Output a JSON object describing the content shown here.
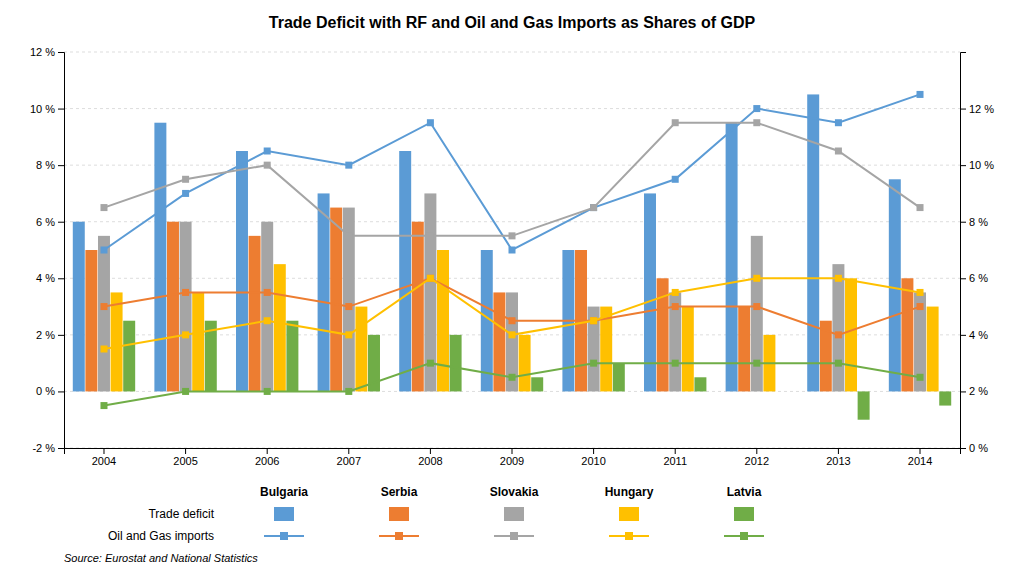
{
  "chart_data": {
    "type": "bar",
    "title": "Trade Deficit with RF and Oil and Gas Imports as Shares of GDP",
    "source": "Source: Eurostat and National Statistics",
    "annotations": [
      "Trade deficit",
      "Oil and Gas imports"
    ],
    "categories": [
      "2004",
      "2005",
      "2006",
      "2007",
      "2008",
      "2009",
      "2010",
      "2011",
      "2012",
      "2013",
      "2014"
    ],
    "series": [
      {
        "name": "Bulgaria",
        "color": "#5B9BD5",
        "values": [
          6.0,
          9.5,
          8.5,
          7.0,
          8.5,
          5.0,
          5.0,
          7.0,
          9.5,
          10.5,
          7.5
        ]
      },
      {
        "name": "Serbia",
        "color": "#ED7D31",
        "values": [
          5.0,
          6.0,
          5.5,
          6.5,
          6.0,
          3.5,
          5.0,
          4.0,
          3.0,
          2.5,
          4.0
        ]
      },
      {
        "name": "Slovakia",
        "color": "#A5A5A5",
        "values": [
          5.5,
          6.0,
          6.0,
          6.5,
          7.0,
          3.5,
          3.0,
          3.5,
          5.5,
          4.5,
          3.5
        ]
      },
      {
        "name": "Hungary",
        "color": "#FFC000",
        "values": [
          3.5,
          3.5,
          4.5,
          3.0,
          5.0,
          2.0,
          3.0,
          3.0,
          2.0,
          4.0,
          3.0
        ]
      },
      {
        "name": "Latvia",
        "color": "#70AD47",
        "values": [
          2.5,
          2.5,
          2.5,
          2.0,
          2.0,
          0.5,
          1.0,
          0.5,
          0.0,
          -1.0,
          -0.5
        ]
      },
      {
        "name": "Bulgaria",
        "type": "line",
        "axis": "y2",
        "marker": "square",
        "line_style": "solid",
        "color": "#5B9BD5",
        "values": [
          7.0,
          9.0,
          10.5,
          10.0,
          11.5,
          7.0,
          8.5,
          9.5,
          12.0,
          11.5,
          12.5
        ]
      },
      {
        "name": "Serbia",
        "type": "line",
        "axis": "y2",
        "marker": "square",
        "line_style": "solid",
        "color": "#ED7D31",
        "values": [
          5.0,
          5.5,
          5.5,
          5.0,
          6.0,
          4.5,
          4.5,
          5.0,
          5.0,
          4.0,
          5.0
        ]
      },
      {
        "name": "Slovakia",
        "type": "line",
        "axis": "y2",
        "marker": "square",
        "line_style": "solid",
        "color": "#A5A5A5",
        "values": [
          8.5,
          9.5,
          10.0,
          7.5,
          7.5,
          7.5,
          8.5,
          11.5,
          11.5,
          10.5,
          8.5
        ]
      },
      {
        "name": "Hungary",
        "type": "line",
        "axis": "y2",
        "marker": "square",
        "line_style": "solid",
        "color": "#FFC000",
        "values": [
          3.5,
          4.0,
          4.5,
          4.0,
          6.0,
          4.0,
          4.5,
          5.5,
          6.0,
          6.0,
          5.5
        ]
      },
      {
        "name": "Latvia",
        "type": "line",
        "axis": "y2",
        "marker": "square",
        "line_style": "solid",
        "color": "#70AD47",
        "values": [
          1.5,
          2.0,
          2.0,
          2.0,
          3.0,
          2.5,
          3.0,
          3.0,
          3.0,
          3.0,
          2.5
        ]
      }
    ],
    "ylim": [
      -2,
      12
    ],
    "yticks": [
      {
        "value": -2,
        "label": "-2 %"
      },
      {
        "value": 0,
        "label": "0 %"
      },
      {
        "value": 2,
        "label": "2 %"
      },
      {
        "value": 4,
        "label": "4 %"
      },
      {
        "value": 6,
        "label": "6 %"
      },
      {
        "value": 8,
        "label": "8 %"
      },
      {
        "value": 10,
        "label": "10 %"
      },
      {
        "value": 12,
        "label": "12 %"
      }
    ],
    "y2lim": [
      0,
      14
    ],
    "y2ticks": [
      {
        "value": 0,
        "label": "0 %"
      },
      {
        "value": 2,
        "label": "2 %"
      },
      {
        "value": 4,
        "label": "4 %"
      },
      {
        "value": 6,
        "label": "6 %"
      },
      {
        "value": 8,
        "label": "8 %"
      },
      {
        "value": 10,
        "label": "10 %"
      },
      {
        "value": 12,
        "label": "12 %"
      }
    ],
    "grid": true,
    "legend": "bottom"
  }
}
